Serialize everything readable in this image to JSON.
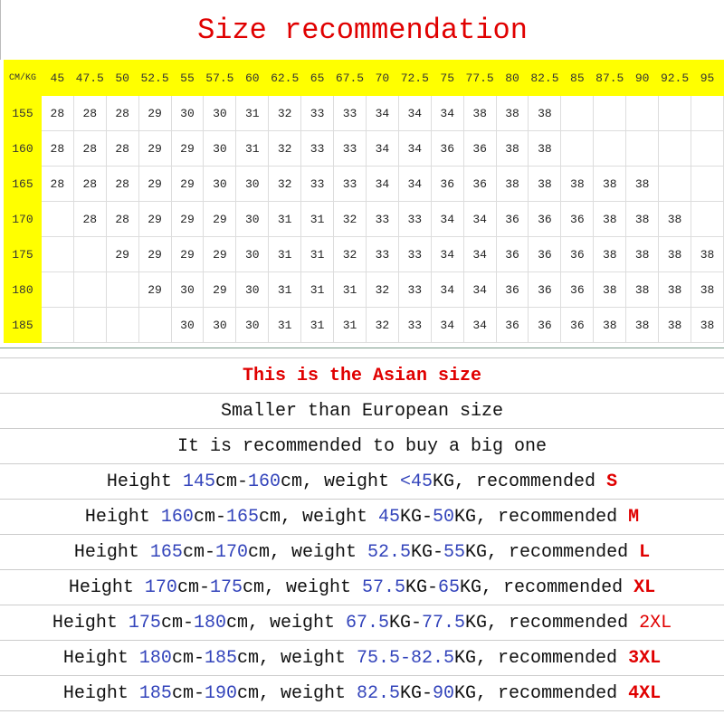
{
  "title": "Size recommendation",
  "table": {
    "corner": "CM/KG",
    "weights": [
      "45",
      "47.5",
      "50",
      "52.5",
      "55",
      "57.5",
      "60",
      "62.5",
      "65",
      "67.5",
      "70",
      "72.5",
      "75",
      "77.5",
      "80",
      "82.5",
      "85",
      "87.5",
      "90",
      "92.5",
      "95"
    ],
    "rows": [
      {
        "height": "155",
        "cells": [
          "28",
          "28",
          "28",
          "29",
          "30",
          "30",
          "31",
          "32",
          "33",
          "33",
          "34",
          "34",
          "34",
          "38",
          "38",
          "38",
          "",
          "",
          "",
          "",
          ""
        ]
      },
      {
        "height": "160",
        "cells": [
          "28",
          "28",
          "28",
          "29",
          "29",
          "30",
          "31",
          "32",
          "33",
          "33",
          "34",
          "34",
          "36",
          "36",
          "38",
          "38",
          "",
          "",
          "",
          "",
          ""
        ]
      },
      {
        "height": "165",
        "cells": [
          "28",
          "28",
          "28",
          "29",
          "29",
          "30",
          "30",
          "32",
          "33",
          "33",
          "34",
          "34",
          "36",
          "36",
          "38",
          "38",
          "38",
          "38",
          "38",
          "",
          ""
        ]
      },
      {
        "height": "170",
        "cells": [
          "",
          "28",
          "28",
          "29",
          "29",
          "29",
          "30",
          "31",
          "31",
          "32",
          "33",
          "33",
          "34",
          "34",
          "36",
          "36",
          "36",
          "38",
          "38",
          "38",
          ""
        ]
      },
      {
        "height": "175",
        "cells": [
          "",
          "",
          "29",
          "29",
          "29",
          "29",
          "30",
          "31",
          "31",
          "32",
          "33",
          "33",
          "34",
          "34",
          "36",
          "36",
          "36",
          "38",
          "38",
          "38",
          "38"
        ]
      },
      {
        "height": "180",
        "cells": [
          "",
          "",
          "",
          "29",
          "30",
          "29",
          "30",
          "31",
          "31",
          "31",
          "32",
          "33",
          "34",
          "34",
          "36",
          "36",
          "36",
          "38",
          "38",
          "38",
          "38"
        ]
      },
      {
        "height": "185",
        "cells": [
          "",
          "",
          "",
          "",
          "30",
          "30",
          "30",
          "31",
          "31",
          "31",
          "32",
          "33",
          "34",
          "34",
          "36",
          "36",
          "36",
          "38",
          "38",
          "38",
          "38"
        ]
      }
    ]
  },
  "colors": {
    "header_bg": "#ffff00",
    "title": "#e00000",
    "number": "#3344bb",
    "size": "#e00000"
  },
  "notes": [
    [
      {
        "t": "This is the Asian size",
        "s": "redb"
      }
    ],
    [
      {
        "t": "Smaller than European size",
        "s": ""
      }
    ],
    [
      {
        "t": "It is recommended to buy a big one",
        "s": ""
      }
    ],
    [
      {
        "t": "Height ",
        "s": ""
      },
      {
        "t": "145",
        "s": "blue"
      },
      {
        "t": "cm-",
        "s": ""
      },
      {
        "t": "160",
        "s": "blue"
      },
      {
        "t": "cm, weight ",
        "s": ""
      },
      {
        "t": "<45",
        "s": "blue"
      },
      {
        "t": "KG, recommended ",
        "s": ""
      },
      {
        "t": "S",
        "s": "redb"
      }
    ],
    [
      {
        "t": "Height ",
        "s": ""
      },
      {
        "t": "160",
        "s": "blue"
      },
      {
        "t": "cm-",
        "s": ""
      },
      {
        "t": "165",
        "s": "blue"
      },
      {
        "t": "cm, weight ",
        "s": ""
      },
      {
        "t": "45",
        "s": "blue"
      },
      {
        "t": "KG-",
        "s": ""
      },
      {
        "t": "50",
        "s": "blue"
      },
      {
        "t": "KG, recommended ",
        "s": ""
      },
      {
        "t": "M",
        "s": "redb"
      }
    ],
    [
      {
        "t": "Height ",
        "s": ""
      },
      {
        "t": "165",
        "s": "blue"
      },
      {
        "t": "cm-",
        "s": ""
      },
      {
        "t": "170",
        "s": "blue"
      },
      {
        "t": "cm, weight ",
        "s": ""
      },
      {
        "t": "52.5",
        "s": "blue"
      },
      {
        "t": "KG-",
        "s": ""
      },
      {
        "t": "55",
        "s": "blue"
      },
      {
        "t": "KG, recommended ",
        "s": ""
      },
      {
        "t": "L",
        "s": "redb"
      }
    ],
    [
      {
        "t": "Height ",
        "s": ""
      },
      {
        "t": "170",
        "s": "blue"
      },
      {
        "t": "cm-",
        "s": ""
      },
      {
        "t": "175",
        "s": "blue"
      },
      {
        "t": "cm, weight ",
        "s": ""
      },
      {
        "t": "57.5",
        "s": "blue"
      },
      {
        "t": "KG-",
        "s": ""
      },
      {
        "t": "65",
        "s": "blue"
      },
      {
        "t": "KG, recommended ",
        "s": ""
      },
      {
        "t": "XL",
        "s": "redb"
      }
    ],
    [
      {
        "t": "Height ",
        "s": ""
      },
      {
        "t": "175",
        "s": "blue"
      },
      {
        "t": "cm-",
        "s": ""
      },
      {
        "t": "180",
        "s": "blue"
      },
      {
        "t": "cm, weight ",
        "s": ""
      },
      {
        "t": "67.5",
        "s": "blue"
      },
      {
        "t": "KG-",
        "s": ""
      },
      {
        "t": "77.5",
        "s": "blue"
      },
      {
        "t": "KG, recommended ",
        "s": ""
      },
      {
        "t": "2XL",
        "s": "red"
      }
    ],
    [
      {
        "t": "Height ",
        "s": ""
      },
      {
        "t": "180",
        "s": "blue"
      },
      {
        "t": "cm-",
        "s": ""
      },
      {
        "t": "185",
        "s": "blue"
      },
      {
        "t": "cm, weight ",
        "s": ""
      },
      {
        "t": "75.5-82.5",
        "s": "blue"
      },
      {
        "t": "KG, recommended ",
        "s": ""
      },
      {
        "t": "3XL",
        "s": "redb"
      }
    ],
    [
      {
        "t": "Height ",
        "s": ""
      },
      {
        "t": "185",
        "s": "blue"
      },
      {
        "t": "cm-",
        "s": ""
      },
      {
        "t": "190",
        "s": "blue"
      },
      {
        "t": "cm, weight ",
        "s": ""
      },
      {
        "t": "82.5",
        "s": "blue"
      },
      {
        "t": "KG-",
        "s": ""
      },
      {
        "t": "90",
        "s": "blue"
      },
      {
        "t": "KG, recommended ",
        "s": ""
      },
      {
        "t": "4XL",
        "s": "redb"
      }
    ]
  ]
}
